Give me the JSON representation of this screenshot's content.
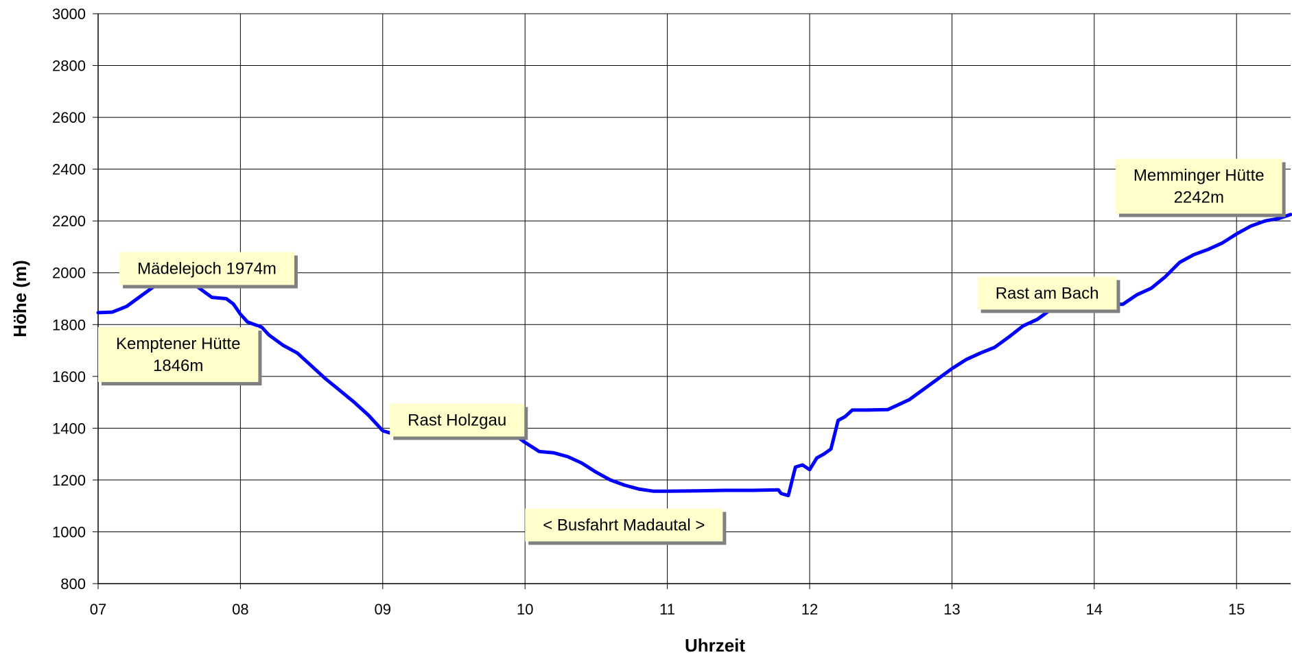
{
  "chart_data": {
    "type": "line",
    "title": "",
    "xlabel": "Uhrzeit",
    "ylabel": "Höhe (m)",
    "xlim": [
      7,
      15.38
    ],
    "ylim": [
      800,
      3000
    ],
    "x_ticks": [
      {
        "value": 7,
        "label": "07"
      },
      {
        "value": 8,
        "label": "08"
      },
      {
        "value": 9,
        "label": "09"
      },
      {
        "value": 10,
        "label": "10"
      },
      {
        "value": 11,
        "label": "11"
      },
      {
        "value": 12,
        "label": "12"
      },
      {
        "value": 13,
        "label": "13"
      },
      {
        "value": 14,
        "label": "14"
      },
      {
        "value": 15,
        "label": "15"
      }
    ],
    "y_ticks": [
      800,
      1000,
      1200,
      1400,
      1600,
      1800,
      2000,
      2200,
      2400,
      2600,
      2800,
      3000
    ],
    "grid": true,
    "legend": "none",
    "colors": {
      "line": "#0000ff",
      "grid": "#000000",
      "annotation_fill": "#ffffcc",
      "annotation_shadow": "#808080"
    },
    "series": [
      {
        "x": [
          7.0,
          7.1,
          7.2,
          7.3,
          7.4,
          7.5,
          7.6,
          7.65,
          7.7,
          7.75,
          7.8,
          7.9,
          7.95,
          8.0,
          8.05,
          8.1,
          8.15,
          8.2,
          8.3,
          8.4,
          8.5,
          8.6,
          8.7,
          8.8,
          8.9,
          9.0,
          9.05,
          9.1,
          9.2,
          9.3,
          9.4,
          9.5,
          9.6,
          9.7,
          9.8,
          9.85,
          9.9,
          9.95,
          10.0,
          10.1,
          10.2,
          10.3,
          10.4,
          10.5,
          10.6,
          10.7,
          10.8,
          10.9,
          11.0,
          11.2,
          11.4,
          11.6,
          11.78,
          11.8,
          11.85,
          11.9,
          11.95,
          12.0,
          12.05,
          12.1,
          12.15,
          12.2,
          12.25,
          12.3,
          12.4,
          12.55,
          12.7,
          12.85,
          13.0,
          13.1,
          13.2,
          13.3,
          13.4,
          13.5,
          13.6,
          13.7,
          13.8,
          13.9,
          14.0,
          14.1,
          14.2,
          14.3,
          14.4,
          14.5,
          14.6,
          14.7,
          14.8,
          14.9,
          15.0,
          15.1,
          15.2,
          15.3,
          15.38
        ],
        "y": [
          1846,
          1848,
          1870,
          1910,
          1950,
          1965,
          1974,
          1965,
          1945,
          1925,
          1905,
          1900,
          1880,
          1840,
          1810,
          1800,
          1790,
          1760,
          1720,
          1690,
          1640,
          1590,
          1545,
          1500,
          1450,
          1390,
          1382,
          1382,
          1382,
          1382,
          1382,
          1382,
          1380,
          1380,
          1380,
          1370,
          1362,
          1365,
          1345,
          1310,
          1305,
          1290,
          1265,
          1230,
          1200,
          1180,
          1165,
          1157,
          1157,
          1158,
          1160,
          1160,
          1162,
          1148,
          1140,
          1250,
          1258,
          1240,
          1285,
          1300,
          1320,
          1430,
          1445,
          1470,
          1470,
          1472,
          1510,
          1570,
          1630,
          1665,
          1690,
          1712,
          1752,
          1795,
          1820,
          1860,
          1884,
          1885,
          1880,
          1880,
          1878,
          1915,
          1940,
          1985,
          2040,
          2070,
          2090,
          2115,
          2150,
          2180,
          2200,
          2210,
          2225
        ]
      }
    ],
    "annotations": [
      {
        "lines": [
          "Mädelejoch 1974m"
        ],
        "anchor_x": 7.15,
        "anchor_y": 2080,
        "align": "center"
      },
      {
        "lines": [
          "Kemptener Hütte",
          "1846m"
        ],
        "anchor_x": 7.0,
        "anchor_y": 1790,
        "align": "center"
      },
      {
        "lines": [
          "Rast Holzgau"
        ],
        "anchor_x": 9.05,
        "anchor_y": 1495,
        "align": "center"
      },
      {
        "lines": [
          "< Busfahrt Madautal >"
        ],
        "anchor_x": 10.0,
        "anchor_y": 1090,
        "align": "center"
      },
      {
        "lines": [
          "Rast am Bach"
        ],
        "anchor_x": 13.18,
        "anchor_y": 1985,
        "align": "center"
      },
      {
        "lines": [
          "Memminger Hütte",
          "2242m"
        ],
        "anchor_x": 14.15,
        "anchor_y": 2440,
        "align": "center"
      }
    ]
  }
}
